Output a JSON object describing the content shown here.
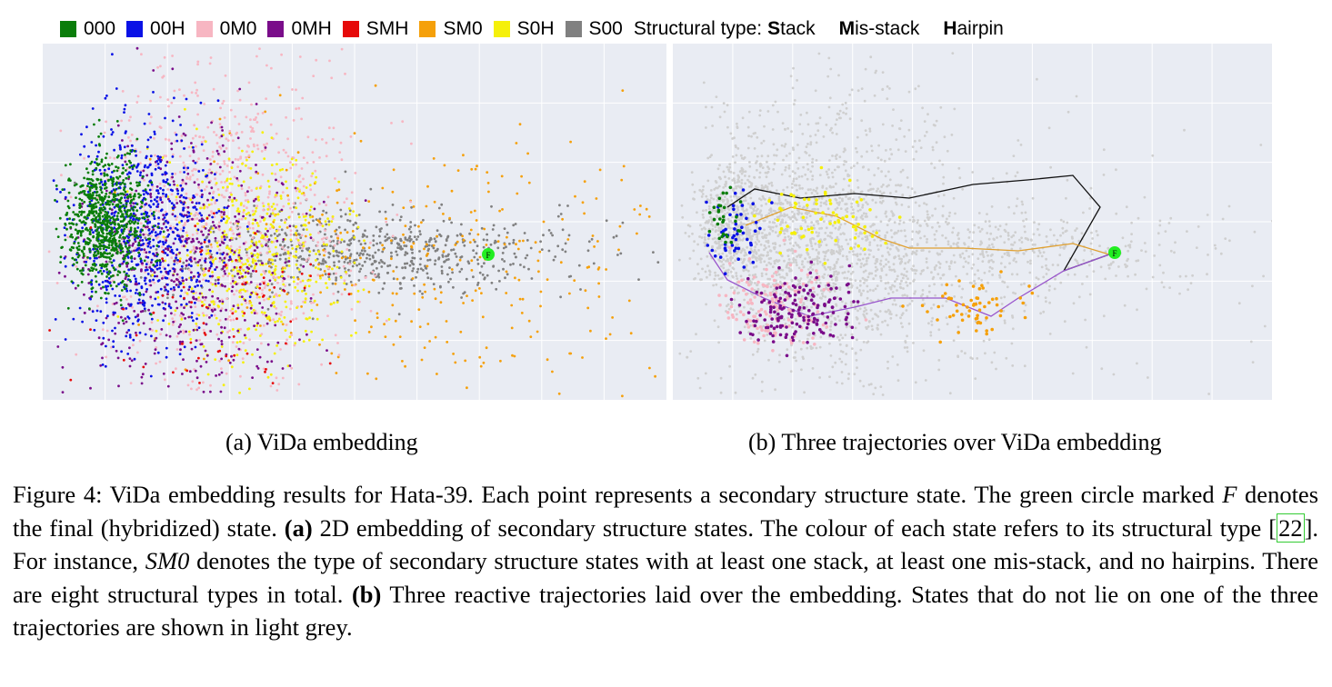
{
  "legend": {
    "items": [
      {
        "label": "000",
        "color": "#0a7d0a"
      },
      {
        "label": "00H",
        "color": "#0a12e6"
      },
      {
        "label": "0M0",
        "color": "#f7b6c2"
      },
      {
        "label": "0MH",
        "color": "#7a0d8a"
      },
      {
        "label": "SMH",
        "color": "#e60a0a"
      },
      {
        "label": "SM0",
        "color": "#f5a00a"
      },
      {
        "label": "S0H",
        "color": "#f5f00a"
      },
      {
        "label": "S00",
        "color": "#808080"
      }
    ],
    "structural_type_label": "Structural type:",
    "stack": {
      "initial": "S",
      "rest": "tack"
    },
    "misstack": {
      "initial": "M",
      "rest": "is-stack"
    },
    "hairpin": {
      "initial": "H",
      "rest": "airpin"
    }
  },
  "panels": {
    "a_caption": "(a) ViDa embedding",
    "b_caption": "(b) Three trajectories over ViDa embedding",
    "final_marker": "F",
    "final_color": "#22ee22",
    "background_color": "#e9ecf3",
    "grey_color": "#cfcfcf"
  },
  "caption": {
    "p1": "Figure 4: ViDa embedding results for Hata-39. Each point represents a secondary structure state. The green circle marked ",
    "f": "F",
    "p2": " denotes the final (hybridized) state. ",
    "a_label": "(a)",
    "p3": " 2D embedding of secondary structure states. The colour of each state refers to its structural type [",
    "ref": "22",
    "p4": "]. For instance, ",
    "sm0": "SM0",
    "p5": " denotes the type of secondary structure states with at least one stack, at least one mis-stack, and no hairpins. There are eight structural types in total. ",
    "b_label": "(b)",
    "p6": " Three reactive trajectories laid over the embedding. States that do not lie on one of the three trajectories are shown in light grey."
  }
}
